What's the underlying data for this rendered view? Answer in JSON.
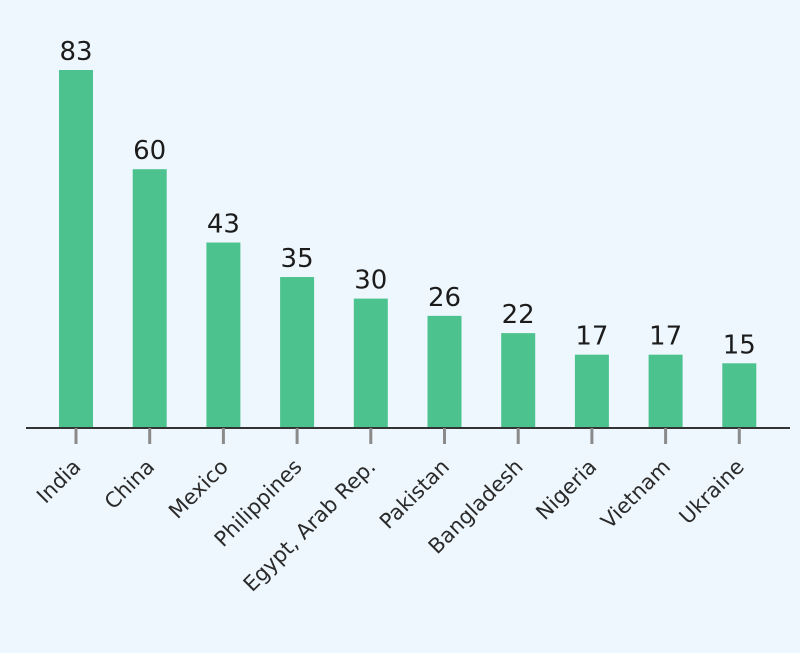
{
  "chart_data": {
    "type": "bar",
    "categories": [
      "India",
      "China",
      "Mexico",
      "Philippines",
      "Egypt, Arab Rep.",
      "Pakistan",
      "Bangladesh",
      "Nigeria",
      "Vietnam",
      "Ukraine"
    ],
    "values": [
      83,
      60,
      43,
      35,
      30,
      26,
      22,
      17,
      17,
      15
    ],
    "data_labels": [
      "83",
      "60",
      "43",
      "35",
      "30",
      "26",
      "22",
      "17",
      "17",
      "15"
    ],
    "title": "",
    "xlabel": "",
    "ylabel": "",
    "ylim": [
      0,
      83
    ],
    "grid": false,
    "legend": "none",
    "colors": {
      "bar": "#4cc38f",
      "axis": "#333333",
      "background": "#eef7fd"
    }
  }
}
